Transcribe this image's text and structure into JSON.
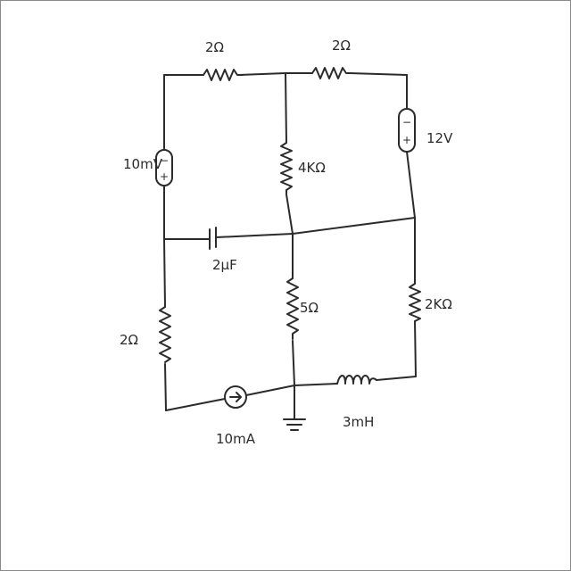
{
  "components": {
    "r_top_left": "2Ω",
    "r_top_right": "2Ω",
    "v_left": "10mV",
    "v_right": "12V",
    "r_mid_upper": "4KΩ",
    "capacitor": "2μF",
    "r_left_lower": "2Ω",
    "r_mid_lower": "5Ω",
    "r_right_lower": "2KΩ",
    "current_source": "10mA",
    "inductor": "3mH"
  },
  "polarity": {
    "minus": "−",
    "plus": "+"
  }
}
